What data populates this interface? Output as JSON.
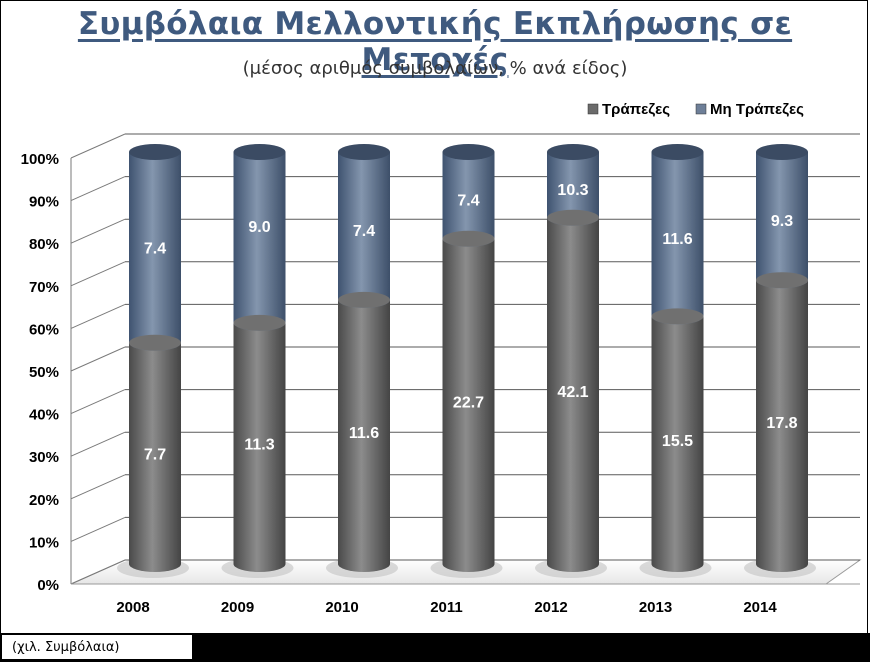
{
  "title": "Συμβόλαια Μελλοντικής Εκπλήρωσης σε Μετοχές",
  "subtitle": "(μέσος αριθμός συμβολαίων, % ανά είδος)",
  "footnote": "(χιλ. Συμβόλαια)",
  "chart_data": {
    "type": "bar",
    "stacked": "100%",
    "categories": [
      "2008",
      "2009",
      "2010",
      "2011",
      "2012",
      "2013",
      "2014"
    ],
    "series": [
      {
        "name": "Τράπεζες",
        "values": [
          7.7,
          11.3,
          11.6,
          22.7,
          42.1,
          15.5,
          17.8
        ],
        "color": "#6b6b6b"
      },
      {
        "name": "Μη Τράπεζες",
        "values": [
          7.4,
          9.0,
          7.4,
          7.4,
          10.3,
          11.6,
          9.3
        ],
        "color": "#5b6f8b"
      }
    ],
    "y_tick_labels": [
      "0%",
      "10%",
      "20%",
      "30%",
      "40%",
      "50%",
      "60%",
      "70%",
      "80%",
      "90%",
      "100%"
    ],
    "ylim": [
      0,
      100
    ],
    "legend_position": "top-right",
    "grid": true
  }
}
